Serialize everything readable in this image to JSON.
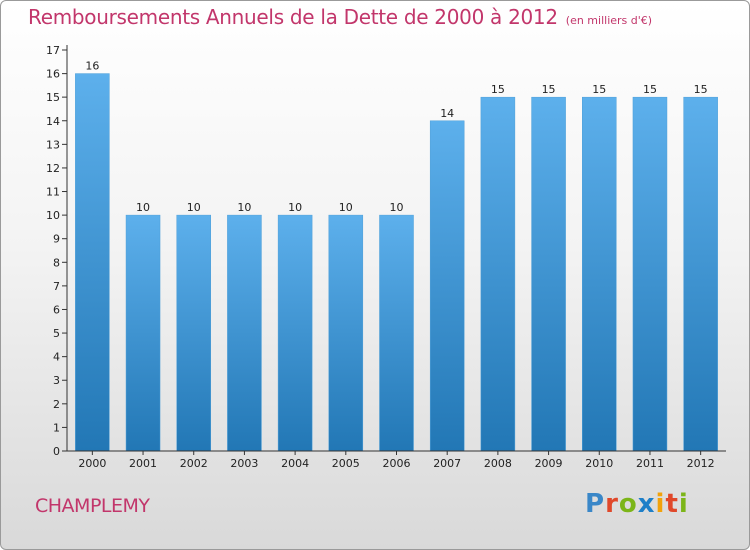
{
  "page": {
    "title": "Remboursements Annuels de la Dette de 2000 à 2012",
    "unit": "(en milliers d'€)",
    "commune": "CHAMPLEMY",
    "logo": {
      "text": "Proxiti",
      "letter_colors": [
        "#3a87c8",
        "#e0482a",
        "#7cb518",
        "#1e7fc8",
        "#f2a20a",
        "#e0482a",
        "#7cb518"
      ]
    }
  },
  "chart_data": {
    "type": "bar",
    "title": "Remboursements Annuels de la Dette de 2000 à 2012",
    "xlabel": "",
    "ylabel": "",
    "categories": [
      "2000",
      "2001",
      "2002",
      "2003",
      "2004",
      "2005",
      "2006",
      "2007",
      "2008",
      "2009",
      "2010",
      "2011",
      "2012"
    ],
    "values": [
      16,
      10,
      10,
      10,
      10,
      10,
      10,
      14,
      15,
      15,
      15,
      15,
      15
    ],
    "data_labels": [
      "16",
      "10",
      "10",
      "10",
      "10",
      "10",
      "10",
      "14",
      "15",
      "15",
      "15",
      "15",
      "15"
    ],
    "ylim": [
      0,
      17
    ],
    "yticks": [
      "0",
      "1",
      "2",
      "3",
      "4",
      "5",
      "6",
      "7",
      "8",
      "9",
      "10",
      "11",
      "12",
      "13",
      "14",
      "15",
      "16",
      "17"
    ],
    "grid": false,
    "legend": "none",
    "colors": {
      "bar_top": "#5db0ec",
      "bar_bottom": "#2277b5",
      "axis": "#333333",
      "label": "#222222"
    }
  }
}
